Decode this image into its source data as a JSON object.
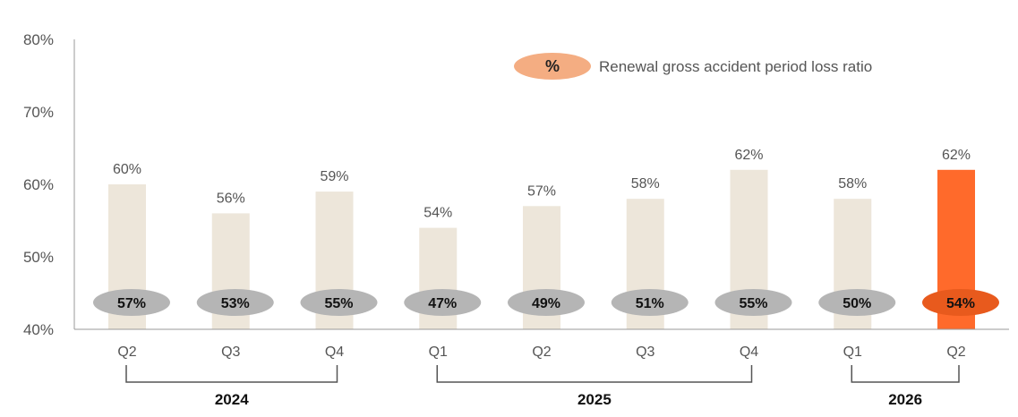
{
  "chart_data": {
    "type": "bar",
    "y_tick_labels": [
      "40%",
      "50%",
      "60%",
      "70%",
      "80%"
    ],
    "ylim": [
      40,
      80
    ],
    "categories": [
      "Q2",
      "Q3",
      "Q4",
      "Q1",
      "Q2",
      "Q3",
      "Q4",
      "Q1",
      "Q2"
    ],
    "series": [
      {
        "values": [
          60,
          56,
          59,
          54,
          57,
          58,
          62,
          58,
          62
        ],
        "labels": [
          "60%",
          "56%",
          "59%",
          "54%",
          "57%",
          "58%",
          "62%",
          "58%",
          "62%"
        ]
      },
      {
        "name": "Renewal gross accident period loss ratio",
        "values": [
          57,
          53,
          55,
          47,
          49,
          51,
          55,
          50,
          54
        ],
        "labels": [
          "57%",
          "53%",
          "55%",
          "47%",
          "49%",
          "51%",
          "55%",
          "50%",
          "54%"
        ]
      }
    ],
    "legend": {
      "symbol_text": "%",
      "label": "Renewal gross accident period loss ratio",
      "position": "top-right"
    },
    "year_groups": [
      {
        "label": "2024",
        "from": 0,
        "to": 2
      },
      {
        "label": "2025",
        "from": 3,
        "to": 6
      },
      {
        "label": "2026",
        "from": 7,
        "to": 8
      }
    ],
    "highlight_index": 8,
    "colors": {
      "bar": "#ede6da",
      "bar_highlight": "#ff6a2b",
      "ellipse": "#b5b5b5",
      "ellipse_highlight": "#e85a1d",
      "legend_ellipse": "#f4ad82",
      "axis": "#999999",
      "text": "#555555",
      "bracket": "#555555"
    },
    "grid": false
  }
}
